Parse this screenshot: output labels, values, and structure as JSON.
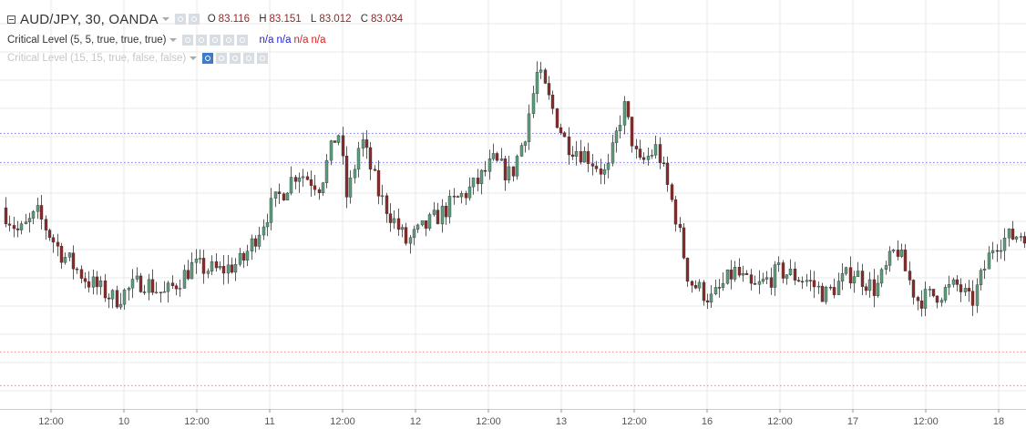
{
  "legend": {
    "symbol_title": "AUD/JPY, 30, OANDA",
    "ohlc": [
      {
        "key": "O",
        "value": "83.116"
      },
      {
        "key": "H",
        "value": "83.151"
      },
      {
        "key": "L",
        "value": "83.012"
      },
      {
        "key": "C",
        "value": "83.034"
      }
    ],
    "indicator_1": "Critical Level (5, 5, true, true, true)",
    "indicator_1_values": [
      {
        "text": "n/a",
        "color": "blue"
      },
      {
        "text": "n/a",
        "color": "blue"
      },
      {
        "text": "n/a",
        "color": "red"
      },
      {
        "text": "n/a",
        "color": "red"
      }
    ],
    "indicator_2": "Critical Level (15, 15, true, false, false)"
  },
  "chart_data": {
    "type": "candlestick",
    "title": "AUD/JPY, 30, OANDA",
    "x_tick_labels": [
      "12:00",
      "10",
      "12:00",
      "11",
      "12:00",
      "12",
      "12:00",
      "13",
      "12:00",
      "16",
      "12:00",
      "17",
      "12:00",
      "18"
    ],
    "grid": true,
    "colors": {
      "up": "#5d9e7e",
      "down": "#8b2a2a",
      "resistance": "#8f8fe6",
      "support": "#ef9a9a",
      "grid": "#e8e8e8"
    },
    "levels": [
      {
        "type": "resistance",
        "value": 84.3
      },
      {
        "type": "resistance",
        "value": 84.0
      },
      {
        "type": "support",
        "value": 82.0
      },
      {
        "type": "support",
        "value": 81.65
      }
    ],
    "ylim": [
      81.4,
      85.7
    ],
    "path": [
      [
        0,
        83.6
      ],
      [
        25,
        83.25
      ],
      [
        45,
        83.45
      ],
      [
        70,
        83.05
      ],
      [
        100,
        82.75
      ],
      [
        130,
        82.55
      ],
      [
        160,
        82.75
      ],
      [
        185,
        82.6
      ],
      [
        215,
        82.9
      ],
      [
        245,
        82.85
      ],
      [
        270,
        82.95
      ],
      [
        300,
        83.5
      ],
      [
        330,
        83.9
      ],
      [
        355,
        83.75
      ],
      [
        375,
        84.35
      ],
      [
        385,
        83.6
      ],
      [
        400,
        84.25
      ],
      [
        420,
        83.65
      ],
      [
        450,
        83.15
      ],
      [
        475,
        83.35
      ],
      [
        505,
        83.6
      ],
      [
        525,
        83.75
      ],
      [
        545,
        84.0
      ],
      [
        565,
        83.85
      ],
      [
        580,
        84.3
      ],
      [
        594,
        84.95
      ],
      [
        625,
        84.2
      ],
      [
        650,
        84.05
      ],
      [
        670,
        83.85
      ],
      [
        688,
        84.6
      ],
      [
        705,
        83.95
      ],
      [
        725,
        84.15
      ],
      [
        745,
        83.45
      ],
      [
        760,
        82.75
      ],
      [
        785,
        82.55
      ],
      [
        810,
        82.85
      ],
      [
        830,
        82.65
      ],
      [
        860,
        82.85
      ],
      [
        890,
        82.75
      ],
      [
        910,
        82.6
      ],
      [
        940,
        82.85
      ],
      [
        965,
        82.65
      ],
      [
        988,
        83.1
      ],
      [
        1010,
        82.55
      ],
      [
        1030,
        82.6
      ],
      [
        1055,
        82.7
      ],
      [
        1070,
        82.5
      ],
      [
        1095,
        83.15
      ],
      [
        1126,
        83.25
      ]
    ]
  }
}
